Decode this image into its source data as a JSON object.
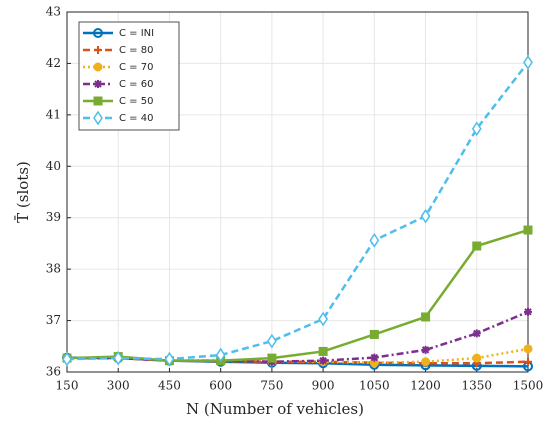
{
  "chart_data": {
    "type": "line",
    "xlabel": "N (Number of vehicles)",
    "ylabel": "T̄ (slots)",
    "x": [
      150,
      300,
      450,
      600,
      750,
      900,
      1050,
      1200,
      1350,
      1500
    ],
    "xlim": [
      150,
      1500
    ],
    "xticks": [
      150,
      300,
      450,
      600,
      750,
      900,
      1050,
      1200,
      1350,
      1500
    ],
    "ylim": [
      36,
      43
    ],
    "yticks": [
      36,
      37,
      38,
      39,
      40,
      41,
      42,
      43
    ],
    "grid": true,
    "legend": "upper left",
    "series": [
      {
        "name": "C = INI",
        "color": "#0072bd",
        "linestyle": "solid",
        "marker": "circle-open",
        "values": [
          36.28,
          36.27,
          36.22,
          36.2,
          36.18,
          36.17,
          36.14,
          36.13,
          36.12,
          36.11
        ]
      },
      {
        "name": "C = 80",
        "color": "#d95319",
        "linestyle": "dashed",
        "marker": "plus",
        "values": [
          36.27,
          36.27,
          36.22,
          36.21,
          36.2,
          36.2,
          36.18,
          36.17,
          36.17,
          36.2
        ]
      },
      {
        "name": "C = 70",
        "color": "#edb120",
        "linestyle": "dotted",
        "marker": "circle",
        "values": [
          36.27,
          36.27,
          36.22,
          36.22,
          36.2,
          36.2,
          36.18,
          36.2,
          36.27,
          36.45
        ]
      },
      {
        "name": "C = 60",
        "color": "#7e2f8e",
        "linestyle": "dashdot",
        "marker": "star",
        "values": [
          36.27,
          36.27,
          36.22,
          36.22,
          36.2,
          36.22,
          36.28,
          36.43,
          36.75,
          37.17
        ]
      },
      {
        "name": "C = 50",
        "color": "#77ac30",
        "linestyle": "solid",
        "marker": "square",
        "values": [
          36.27,
          36.3,
          36.22,
          36.22,
          36.27,
          36.4,
          36.73,
          37.07,
          38.45,
          38.76
        ]
      },
      {
        "name": "C = 40",
        "color": "#4dbeee",
        "linestyle": "dashed",
        "marker": "diamond-open",
        "values": [
          36.25,
          36.27,
          36.25,
          36.33,
          36.6,
          37.03,
          38.56,
          39.03,
          40.73,
          42.02
        ]
      }
    ]
  }
}
